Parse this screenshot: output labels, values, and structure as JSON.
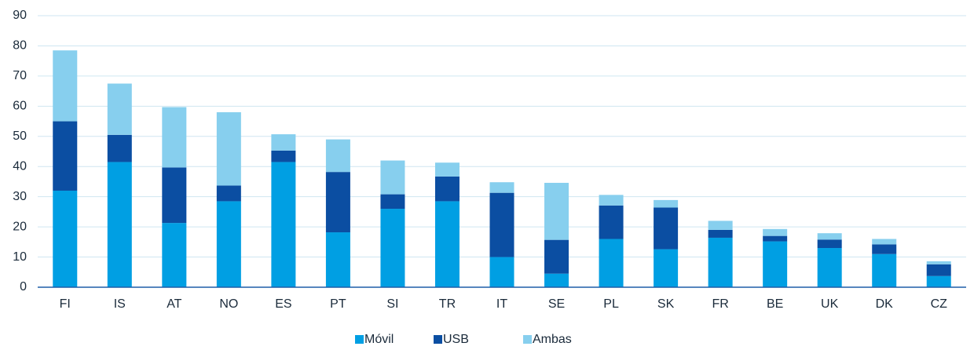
{
  "chart_data": {
    "type": "stacked_bar",
    "categories": [
      "FI",
      "IS",
      "AT",
      "NO",
      "ES",
      "PT",
      "SI",
      "TR",
      "IT",
      "SE",
      "PL",
      "SK",
      "FR",
      "BE",
      "UK",
      "DK",
      "CZ"
    ],
    "series": [
      {
        "name": "Móvil",
        "color": "#009fe3",
        "values": [
          32,
          41.5,
          21.3,
          28.5,
          41.5,
          18.2,
          26,
          28.5,
          10,
          4.5,
          16,
          12.6,
          16.4,
          15.2,
          13,
          11,
          3.7
        ]
      },
      {
        "name": "USB",
        "color": "#0b4ea2",
        "values": [
          23,
          9,
          18.4,
          5.2,
          3.8,
          20,
          4.8,
          8.2,
          21.3,
          11.2,
          11.1,
          13.8,
          2.6,
          1.8,
          2.8,
          3.2,
          3.9
        ]
      },
      {
        "name": "Ambas",
        "color": "#87cfee",
        "values": [
          23.5,
          17,
          20,
          24.3,
          5.4,
          10.8,
          11.2,
          4.6,
          3.5,
          18.9,
          3.5,
          2.5,
          3,
          2.3,
          2.1,
          1.8,
          1
        ]
      }
    ],
    "ylim": [
      0,
      90
    ],
    "yticks": [
      0,
      10,
      20,
      30,
      40,
      50,
      60,
      70,
      80,
      90
    ],
    "grid": true,
    "legend": "bottom"
  }
}
